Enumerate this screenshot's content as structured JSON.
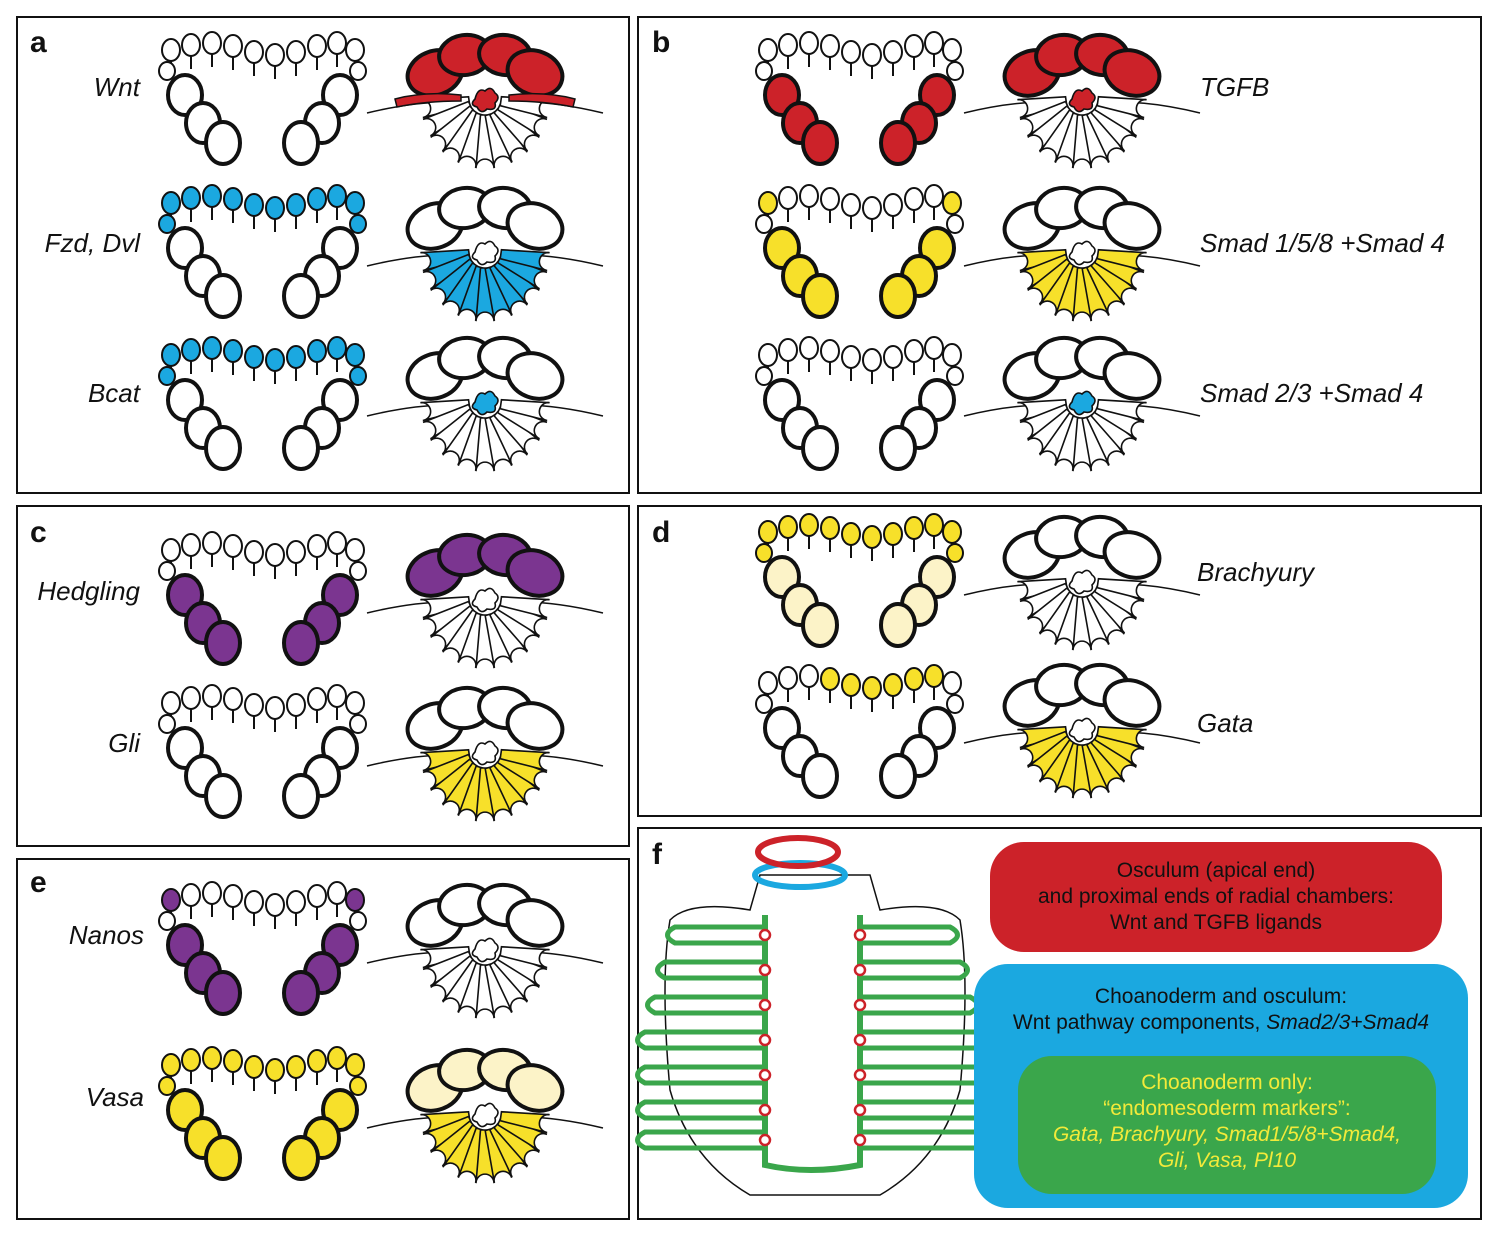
{
  "colors": {
    "red": "#cc2229",
    "blue": "#1ba8e0",
    "purple": "#7b3590",
    "yellow": "#f7e02a",
    "pale_yellow": "#fcf3c8",
    "green": "#3aa64b",
    "white": "#ffffff",
    "outline": "#111111",
    "legend_red": "#cc2229",
    "legend_blue": "#1ba8e0",
    "legend_green": "#3aa64b",
    "legend_green_text": "#f2ea3a"
  },
  "panels": {
    "a": {
      "label": "a",
      "rows": [
        {
          "gene": "Wnt",
          "left": {
            "top": "white",
            "sides": "white"
          },
          "right": {
            "top": "red",
            "bottom": "white",
            "center": "red",
            "top_edge": "red"
          }
        },
        {
          "gene": "Fzd, Dvl",
          "left": {
            "top": "blue",
            "sides": "white"
          },
          "right": {
            "top": "white",
            "bottom": "blue",
            "center": "white",
            "top_edge": "white"
          }
        },
        {
          "gene": "Bcat",
          "left": {
            "top": "blue",
            "sides": "white"
          },
          "right": {
            "top": "white",
            "bottom": "white",
            "center": "blue",
            "top_edge": "white"
          }
        }
      ]
    },
    "b": {
      "label": "b",
      "rows": [
        {
          "gene": "TGFB",
          "left": {
            "top": "white",
            "sides": "red"
          },
          "right": {
            "top": "red",
            "bottom": "white",
            "center": "red",
            "top_edge": "white"
          }
        },
        {
          "gene": "Smad 1/5/8 +Smad 4",
          "left": {
            "top": "yellow_ends",
            "sides": "yellow"
          },
          "right": {
            "top": "white",
            "bottom": "yellow",
            "center": "white",
            "top_edge": "white"
          }
        },
        {
          "gene": "Smad 2/3 +Smad 4",
          "left": {
            "top": "white",
            "sides": "white"
          },
          "right": {
            "top": "white",
            "bottom": "white",
            "center": "blue",
            "top_edge": "white"
          }
        }
      ]
    },
    "c": {
      "label": "c",
      "rows": [
        {
          "gene": "Hedgling",
          "left": {
            "top": "white",
            "sides": "purple"
          },
          "right": {
            "top": "purple",
            "bottom": "white",
            "center": "white",
            "top_edge": "white"
          }
        },
        {
          "gene": "Gli",
          "left": {
            "top": "white",
            "sides": "white"
          },
          "right": {
            "top": "white",
            "bottom": "yellow",
            "center": "white",
            "top_edge": "white"
          }
        }
      ]
    },
    "d": {
      "label": "d",
      "rows": [
        {
          "gene": "Brachyury",
          "left": {
            "top": "yellow",
            "sides": "pale_yellow"
          },
          "right": {
            "top": "white",
            "bottom": "white",
            "center": "white",
            "top_edge": "white"
          }
        },
        {
          "gene": "Gata",
          "left": {
            "top": "yellow_mid",
            "sides": "white"
          },
          "right": {
            "top": "white",
            "bottom": "yellow",
            "center": "white",
            "top_edge": "white"
          }
        }
      ]
    },
    "e": {
      "label": "e",
      "rows": [
        {
          "gene": "Nanos",
          "left": {
            "top": "purple_ends",
            "sides": "purple"
          },
          "right": {
            "top": "white",
            "bottom": "white",
            "center": "white",
            "top_edge": "white"
          }
        },
        {
          "gene": "Vasa",
          "left": {
            "top": "yellow",
            "sides": "yellow"
          },
          "right": {
            "top": "pale_yellow",
            "bottom": "yellow",
            "center": "white",
            "top_edge": "white"
          }
        }
      ]
    },
    "f": {
      "label": "f",
      "legend": {
        "red_lines": [
          "Osculum (apical end)",
          "and proximal ends of radial chambers:",
          "Wnt and TGFB ligands"
        ],
        "blue_lines": [
          "Choanoderm and osculum:",
          "Wnt pathway components, "
        ],
        "blue_italic": "Smad2/3+Smad4",
        "green_title_lines": [
          "Choanoderm only:",
          "“endomesoderm markers”:"
        ],
        "green_italic_lines": [
          "Gata, Brachyury, Smad1/5/8+Smad4,",
          "Gli, Vasa, Pl10"
        ]
      }
    }
  }
}
